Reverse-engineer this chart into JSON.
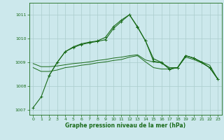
{
  "background_color": "#cce8ec",
  "grid_color": "#aacccc",
  "line_color": "#1a6b1a",
  "xlabel": "Graphe pression niveau de la mer (hPa)",
  "xlim": [
    -0.5,
    23.5
  ],
  "ylim": [
    1006.8,
    1011.5
  ],
  "yticks": [
    1007,
    1008,
    1009,
    1010,
    1011
  ],
  "xticks": [
    0,
    1,
    2,
    3,
    4,
    5,
    6,
    7,
    8,
    9,
    10,
    11,
    12,
    13,
    14,
    15,
    16,
    17,
    18,
    19,
    20,
    21,
    22,
    23
  ],
  "series1_x": [
    0,
    1,
    2,
    3,
    4,
    5,
    6,
    7,
    8,
    9,
    10,
    11,
    12,
    13,
    14,
    15,
    16,
    17,
    18,
    19,
    20,
    21,
    22,
    23
  ],
  "series1_y": [
    1007.1,
    1007.55,
    1008.45,
    1009.0,
    1009.45,
    1009.65,
    1009.78,
    1009.85,
    1009.9,
    1010.05,
    1010.5,
    1010.78,
    1011.0,
    1010.5,
    1009.9,
    1009.15,
    1009.0,
    1008.72,
    1008.78,
    1009.28,
    1009.18,
    1009.0,
    1008.78,
    1008.3
  ],
  "series2_x": [
    0,
    1,
    2,
    3,
    4,
    5,
    6,
    7,
    8,
    9,
    10,
    11,
    12,
    13,
    14,
    15,
    16,
    17,
    18,
    19,
    20,
    21,
    22,
    23
  ],
  "series2_y": [
    1008.95,
    1008.82,
    1008.82,
    1008.85,
    1008.9,
    1008.95,
    1008.98,
    1009.02,
    1009.08,
    1009.12,
    1009.18,
    1009.22,
    1009.28,
    1009.32,
    1009.1,
    1009.02,
    1008.98,
    1008.78,
    1008.78,
    1009.28,
    1009.18,
    1009.02,
    1008.88,
    1008.3
  ],
  "series3_x": [
    0,
    1,
    2,
    3,
    4,
    5,
    6,
    7,
    8,
    9,
    10,
    11,
    12,
    13,
    14,
    15,
    16,
    17,
    18,
    19,
    20,
    21,
    22,
    23
  ],
  "series3_y": [
    1008.78,
    1008.62,
    1008.62,
    1008.68,
    1008.78,
    1008.82,
    1008.88,
    1008.92,
    1008.98,
    1009.02,
    1009.08,
    1009.12,
    1009.22,
    1009.28,
    1009.02,
    1008.78,
    1008.72,
    1008.72,
    1008.78,
    1009.22,
    1009.12,
    1008.98,
    1008.78,
    1008.3
  ],
  "series4_x": [
    2,
    3,
    4,
    5,
    6,
    7,
    8,
    9,
    10,
    11,
    12,
    13,
    14,
    15,
    16,
    17,
    18,
    19,
    20,
    21,
    22,
    23
  ],
  "series4_y": [
    1008.45,
    1009.0,
    1009.45,
    1009.62,
    1009.75,
    1009.82,
    1009.88,
    1009.95,
    1010.42,
    1010.72,
    1011.0,
    1010.48,
    1009.9,
    1009.05,
    1008.98,
    1008.72,
    1008.78,
    1009.28,
    1009.18,
    1009.0,
    1008.78,
    1008.3
  ]
}
